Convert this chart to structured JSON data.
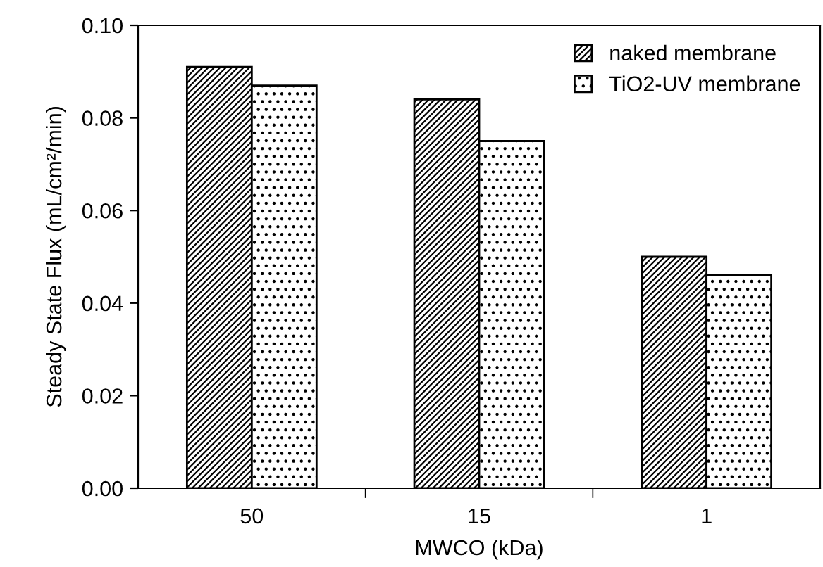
{
  "chart_data": {
    "type": "bar",
    "xlabel": "MWCO (kDa)",
    "ylabel": "Steady State Flux (mL/cm²/min)",
    "categories": [
      "50",
      "15",
      "1"
    ],
    "series": [
      {
        "name": "naked membrane",
        "color": "#000000",
        "values": [
          0.091,
          0.084,
          0.05
        ]
      },
      {
        "name": "TiO2-UV membrane",
        "color": "#000000",
        "values": [
          0.087,
          0.075,
          0.046
        ]
      }
    ],
    "ylim": [
      0,
      0.1
    ],
    "yticks": [
      {
        "value": 0,
        "label": "0.00"
      },
      {
        "value": 0.02,
        "label": "0.02"
      },
      {
        "value": 0.04,
        "label": "0.04"
      },
      {
        "value": 0.06,
        "label": "0.06"
      },
      {
        "value": 0.08,
        "label": "0.08"
      },
      {
        "value": 0.1,
        "label": "0.10"
      }
    ],
    "grid": false,
    "legend": "top right"
  }
}
